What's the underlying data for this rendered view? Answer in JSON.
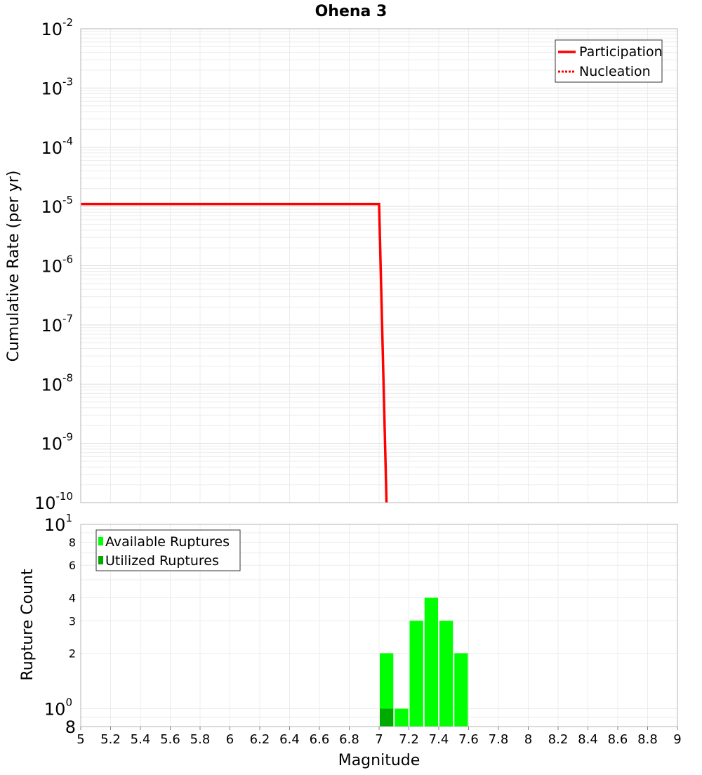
{
  "chart_data": {
    "title": "Ohena 3",
    "xlabel": "Magnitude",
    "xlim": [
      5,
      9
    ],
    "xticks": [
      "5",
      "5.2",
      "5.4",
      "5.6",
      "5.8",
      "6",
      "6.2",
      "6.4",
      "6.6",
      "6.8",
      "7",
      "7.2",
      "7.4",
      "7.6",
      "7.8",
      "8",
      "8.2",
      "8.4",
      "8.6",
      "8.8",
      "9"
    ],
    "top": {
      "type": "line",
      "ylabel": "Cumulative Rate (per yr)",
      "yscale": "log",
      "ylim": [
        1e-10,
        0.01
      ],
      "yticks": [
        {
          "base": "10",
          "exp": "-2"
        },
        {
          "base": "10",
          "exp": "-3"
        },
        {
          "base": "10",
          "exp": "-4"
        },
        {
          "base": "10",
          "exp": "-5"
        },
        {
          "base": "10",
          "exp": "-6"
        },
        {
          "base": "10",
          "exp": "-7"
        },
        {
          "base": "10",
          "exp": "-8"
        },
        {
          "base": "10",
          "exp": "-9"
        },
        {
          "base": "10",
          "exp": "-10"
        }
      ],
      "legend": {
        "position": "top-right",
        "entries": [
          {
            "label": "Participation",
            "style": "solid",
            "color": "#ff0000"
          },
          {
            "label": "Nucleation",
            "style": "dotted",
            "color": "#ff0000"
          }
        ]
      },
      "series": [
        {
          "name": "Participation",
          "color": "#ff0000",
          "style": "solid",
          "x": [
            5.0,
            6.0,
            7.0,
            7.05
          ],
          "y": [
            1.1e-05,
            1.1e-05,
            1.1e-05,
            1e-10
          ]
        },
        {
          "name": "Nucleation",
          "color": "#ff0000",
          "style": "dotted",
          "x": [
            5.0,
            6.0,
            7.0,
            7.05
          ],
          "y": [
            1.1e-05,
            1.1e-05,
            1.1e-05,
            1e-10
          ]
        }
      ]
    },
    "bottom": {
      "type": "bar",
      "ylabel": "Rupture Count",
      "yscale": "log",
      "ylim": [
        0.8,
        10
      ],
      "yticks": [
        {
          "base": "10",
          "exp": "1",
          "value": 10
        },
        {
          "base": "10",
          "exp": "0",
          "value": 1
        },
        {
          "base": "8",
          "exp": "",
          "value": 0.8
        }
      ],
      "yminor_labels": [
        {
          "label": "8",
          "value": 8
        },
        {
          "label": "6",
          "value": 6
        },
        {
          "label": "4",
          "value": 4
        },
        {
          "label": "3",
          "value": 3
        },
        {
          "label": "2",
          "value": 2
        }
      ],
      "legend": {
        "position": "top-left",
        "entries": [
          {
            "label": "Available Ruptures",
            "color": "#00ff00"
          },
          {
            "label": "Utilized Ruptures",
            "color": "#00aa00"
          }
        ]
      },
      "bar_width": 0.1,
      "series": [
        {
          "name": "Available Ruptures",
          "color": "#00ff00",
          "x": [
            7.05,
            7.15,
            7.25,
            7.35,
            7.45,
            7.55
          ],
          "values": [
            2,
            1,
            3,
            4,
            3,
            2
          ]
        },
        {
          "name": "Utilized Ruptures",
          "color": "#00aa00",
          "x": [
            7.05
          ],
          "values": [
            1
          ]
        }
      ]
    }
  }
}
